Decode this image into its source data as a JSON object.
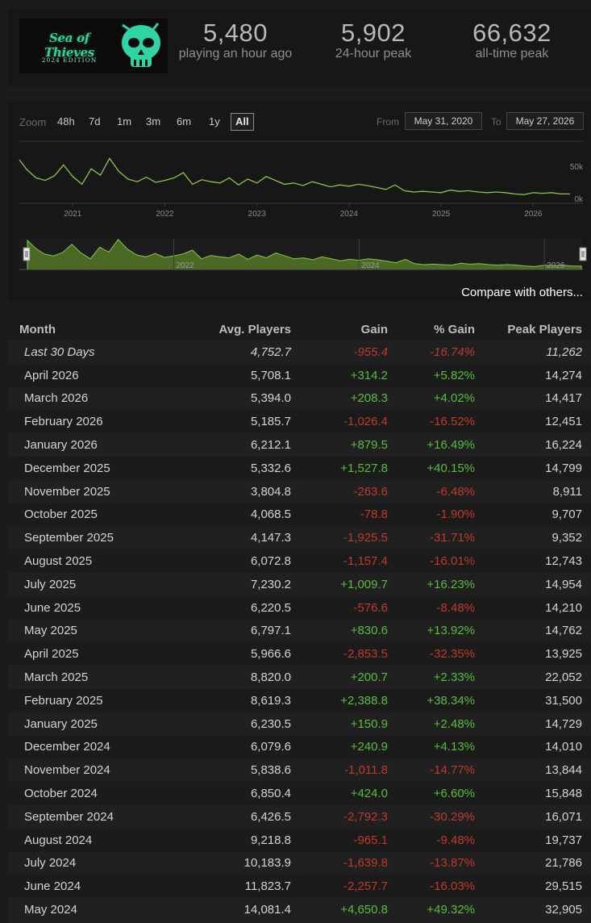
{
  "header": {
    "logo": {
      "title": "Sea of Thieves",
      "edition": "2024 EDITION"
    },
    "stats": [
      {
        "value": "5,480",
        "label": "playing an hour ago"
      },
      {
        "value": "5,902",
        "label": "24-hour peak"
      },
      {
        "value": "66,632",
        "label": "all-time peak"
      }
    ]
  },
  "chart": {
    "zoom_label": "Zoom",
    "zoom_options": [
      "48h",
      "7d",
      "1m",
      "3m",
      "6m",
      "1y",
      "All"
    ],
    "zoom_selected": "All",
    "from_label": "From",
    "from_value": "May 31, 2020",
    "to_label": "To",
    "to_value": "May 27, 2026",
    "compare_link": "Compare with others...",
    "line_color": "#8bc34a",
    "navigator_fill": "#4a6a24"
  },
  "chart_data": {
    "type": "line",
    "series": [
      {
        "x": [
          2020.42,
          2020.5,
          2020.6,
          2020.7,
          2020.8,
          2020.9,
          2021.0,
          2021.1,
          2021.2,
          2021.3,
          2021.4,
          2021.5,
          2021.6,
          2021.7,
          2021.8,
          2021.9,
          2022.0,
          2022.1,
          2022.2,
          2022.3,
          2022.4,
          2022.5,
          2022.6,
          2022.7,
          2022.8,
          2022.9,
          2023.0,
          2023.1,
          2023.2,
          2023.3,
          2023.4,
          2023.5,
          2023.6,
          2023.7,
          2023.8,
          2023.9,
          2024.0,
          2024.1,
          2024.2,
          2024.3,
          2024.4,
          2024.5,
          2024.6,
          2024.7,
          2024.8,
          2024.9,
          2025.0,
          2025.1,
          2025.2,
          2025.3,
          2025.4,
          2025.5,
          2025.6,
          2025.7,
          2025.8,
          2025.9,
          2026.0,
          2026.1,
          2026.2,
          2026.3,
          2026.4
        ],
        "y": [
          60000,
          45000,
          32000,
          28000,
          35000,
          52000,
          34000,
          22000,
          46000,
          36000,
          62000,
          42000,
          30000,
          26000,
          33000,
          25000,
          28000,
          32000,
          40000,
          22000,
          29000,
          26000,
          24000,
          32000,
          21000,
          30000,
          24000,
          34000,
          28000,
          22000,
          24000,
          20000,
          26000,
          22000,
          18000,
          21000,
          19000,
          22000,
          20000,
          17000,
          14000,
          21000,
          12000,
          10000,
          11000,
          10000,
          9000,
          13000,
          11000,
          12000,
          10000,
          9000,
          10000,
          9000,
          7000,
          6000,
          9000,
          8000,
          9000,
          7000,
          7000
        ]
      }
    ],
    "y_ticks": [
      "50k",
      "0k"
    ],
    "x_ticks": [
      "2021",
      "2022",
      "2023",
      "2024",
      "2025",
      "2026"
    ],
    "navigator_ticks": [
      "2022",
      "2024",
      "2026"
    ],
    "ylim": [
      0,
      60000
    ],
    "xlim": [
      2020.42,
      2026.4
    ],
    "grid": false,
    "legend": "none"
  },
  "table": {
    "headers": {
      "month": "Month",
      "avg": "Avg. Players",
      "gain": "Gain",
      "pct": "% Gain",
      "peak": "Peak Players"
    },
    "rows": [
      {
        "month": "Last 30 Days",
        "avg": "4,752.7",
        "gain": "-955.4",
        "pct": "-16.74%",
        "peak": "11,262",
        "trend": "neg",
        "italic": true
      },
      {
        "month": "April 2026",
        "avg": "5,708.1",
        "gain": "+314.2",
        "pct": "+5.82%",
        "peak": "14,274",
        "trend": "pos"
      },
      {
        "month": "March 2026",
        "avg": "5,394.0",
        "gain": "+208.3",
        "pct": "+4.02%",
        "peak": "14,417",
        "trend": "pos"
      },
      {
        "month": "February 2026",
        "avg": "5,185.7",
        "gain": "-1,026.4",
        "pct": "-16.52%",
        "peak": "12,451",
        "trend": "neg"
      },
      {
        "month": "January 2026",
        "avg": "6,212.1",
        "gain": "+879.5",
        "pct": "+16.49%",
        "peak": "16,224",
        "trend": "pos"
      },
      {
        "month": "December 2025",
        "avg": "5,332.6",
        "gain": "+1,527.8",
        "pct": "+40.15%",
        "peak": "14,799",
        "trend": "pos"
      },
      {
        "month": "November 2025",
        "avg": "3,804.8",
        "gain": "-263.6",
        "pct": "-6.48%",
        "peak": "8,911",
        "trend": "neg"
      },
      {
        "month": "October 2025",
        "avg": "4,068.5",
        "gain": "-78.8",
        "pct": "-1.90%",
        "peak": "9,707",
        "trend": "neg"
      },
      {
        "month": "September 2025",
        "avg": "4,147.3",
        "gain": "-1,925.5",
        "pct": "-31.71%",
        "peak": "9,352",
        "trend": "neg"
      },
      {
        "month": "August 2025",
        "avg": "6,072.8",
        "gain": "-1,157.4",
        "pct": "-16.01%",
        "peak": "12,743",
        "trend": "neg"
      },
      {
        "month": "July 2025",
        "avg": "7,230.2",
        "gain": "+1,009.7",
        "pct": "+16.23%",
        "peak": "14,954",
        "trend": "pos"
      },
      {
        "month": "June 2025",
        "avg": "6,220.5",
        "gain": "-576.6",
        "pct": "-8.48%",
        "peak": "14,210",
        "trend": "neg"
      },
      {
        "month": "May 2025",
        "avg": "6,797.1",
        "gain": "+830.6",
        "pct": "+13.92%",
        "peak": "14,762",
        "trend": "pos"
      },
      {
        "month": "April 2025",
        "avg": "5,966.6",
        "gain": "-2,853.5",
        "pct": "-32.35%",
        "peak": "13,925",
        "trend": "neg"
      },
      {
        "month": "March 2025",
        "avg": "8,820.0",
        "gain": "+200.7",
        "pct": "+2.33%",
        "peak": "22,052",
        "trend": "pos"
      },
      {
        "month": "February 2025",
        "avg": "8,619.3",
        "gain": "+2,388.8",
        "pct": "+38.34%",
        "peak": "31,500",
        "trend": "pos"
      },
      {
        "month": "January 2025",
        "avg": "6,230.5",
        "gain": "+150.9",
        "pct": "+2.48%",
        "peak": "14,729",
        "trend": "pos"
      },
      {
        "month": "December 2024",
        "avg": "6,079.6",
        "gain": "+240.9",
        "pct": "+4.13%",
        "peak": "14,010",
        "trend": "pos"
      },
      {
        "month": "November 2024",
        "avg": "5,838.6",
        "gain": "-1,011.8",
        "pct": "-14.77%",
        "peak": "13,844",
        "trend": "neg"
      },
      {
        "month": "October 2024",
        "avg": "6,850.4",
        "gain": "+424.0",
        "pct": "+6.60%",
        "peak": "15,848",
        "trend": "pos"
      },
      {
        "month": "September 2024",
        "avg": "6,426.5",
        "gain": "-2,792.3",
        "pct": "-30.29%",
        "peak": "16,071",
        "trend": "neg"
      },
      {
        "month": "August 2024",
        "avg": "9,218.8",
        "gain": "-965.1",
        "pct": "-9.48%",
        "peak": "19,737",
        "trend": "neg"
      },
      {
        "month": "July 2024",
        "avg": "10,183.9",
        "gain": "-1,639.8",
        "pct": "-13.87%",
        "peak": "21,786",
        "trend": "neg"
      },
      {
        "month": "June 2024",
        "avg": "11,823.7",
        "gain": "-2,257.7",
        "pct": "-16.03%",
        "peak": "29,515",
        "trend": "neg"
      },
      {
        "month": "May 2024",
        "avg": "14,081.4",
        "gain": "+4,650.8",
        "pct": "+49.32%",
        "peak": "32,905",
        "trend": "pos"
      }
    ]
  }
}
